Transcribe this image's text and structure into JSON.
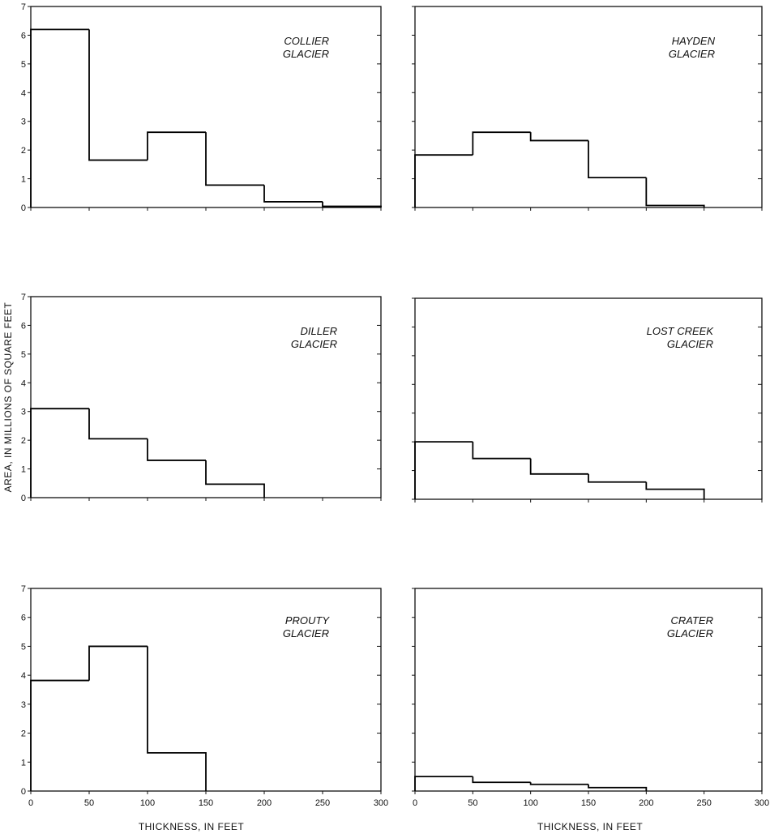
{
  "y_axis_title": "AREA, IN MILLIONS OF SQUARE FEET",
  "x_axis_titles": [
    "THICKNESS, IN FEET",
    "THICKNESS, IN FEET"
  ],
  "x_ticks": [
    "0",
    "50",
    "100",
    "150",
    "200",
    "250",
    "300"
  ],
  "y_ticks": [
    "0",
    "1",
    "2",
    "3",
    "4",
    "5",
    "6",
    "7"
  ],
  "chart_data": [
    {
      "type": "bar",
      "panel_label": [
        "COLLIER",
        "GLACIER"
      ],
      "xlabel": "",
      "ylabel": "",
      "bin_edges": [
        0,
        50,
        100,
        150,
        200,
        250,
        300
      ],
      "values": [
        6.2,
        1.65,
        2.62,
        0.78,
        0.2,
        0.04
      ],
      "xlim": [
        0,
        300
      ],
      "ylim": [
        0,
        7
      ],
      "grid": false
    },
    {
      "type": "bar",
      "panel_label": [
        "HAYDEN",
        "GLACIER"
      ],
      "xlabel": "",
      "ylabel": "",
      "bin_edges": [
        0,
        50,
        100,
        150,
        200,
        250
      ],
      "values": [
        1.83,
        2.62,
        2.33,
        1.04,
        0.07
      ],
      "xlim": [
        0,
        300
      ],
      "ylim": [
        0,
        7
      ],
      "grid": false
    },
    {
      "type": "bar",
      "panel_label": [
        "DILLER",
        "GLACIER"
      ],
      "xlabel": "",
      "ylabel": "AREA, IN MILLIONS OF SQUARE FEET",
      "bin_edges": [
        0,
        50,
        100,
        150,
        200
      ],
      "values": [
        3.1,
        2.05,
        1.3,
        0.47
      ],
      "xlim": [
        0,
        300
      ],
      "ylim": [
        0,
        7
      ],
      "grid": false
    },
    {
      "type": "bar",
      "panel_label": [
        "LOST CREEK",
        "GLACIER"
      ],
      "xlabel": "",
      "ylabel": "",
      "bin_edges": [
        0,
        50,
        100,
        150,
        200,
        250
      ],
      "values": [
        2.0,
        1.42,
        0.88,
        0.6,
        0.35
      ],
      "xlim": [
        0,
        300
      ],
      "ylim": [
        0,
        7
      ],
      "grid": false
    },
    {
      "type": "bar",
      "panel_label": [
        "PROUTY",
        "GLACIER"
      ],
      "xlabel": "THICKNESS, IN FEET",
      "ylabel": "",
      "bin_edges": [
        0,
        50,
        100,
        150
      ],
      "values": [
        3.82,
        5.0,
        1.32
      ],
      "xlim": [
        0,
        300
      ],
      "ylim": [
        0,
        7
      ],
      "grid": false
    },
    {
      "type": "bar",
      "panel_label": [
        "CRATER",
        "GLACIER"
      ],
      "xlabel": "THICKNESS, IN FEET",
      "ylabel": "",
      "bin_edges": [
        0,
        50,
        100,
        150,
        200
      ],
      "values": [
        0.5,
        0.3,
        0.23,
        0.12
      ],
      "xlim": [
        0,
        300
      ],
      "ylim": [
        0,
        7
      ],
      "grid": false
    }
  ]
}
